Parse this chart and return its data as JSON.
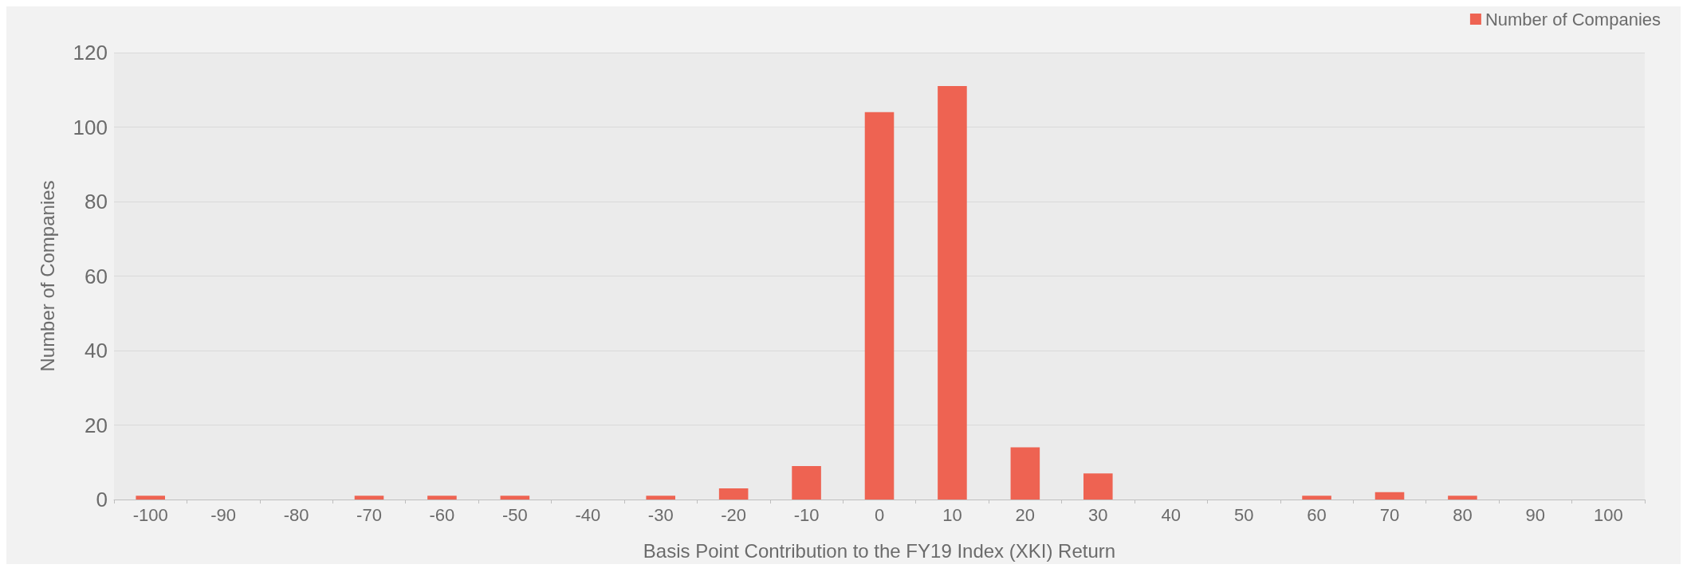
{
  "chart_data": {
    "type": "bar",
    "xlabel": "Basis Point Contribution to the FY19 Index (XKI) Return",
    "ylabel": "Number of Companies",
    "categories": [
      "-100",
      "-90",
      "-80",
      "-70",
      "-60",
      "-50",
      "-40",
      "-30",
      "-20",
      "-10",
      "0",
      "10",
      "20",
      "30",
      "40",
      "50",
      "60",
      "70",
      "80",
      "90",
      "100"
    ],
    "series": [
      {
        "name": "Number of Companies",
        "color": "#ee6352",
        "values": [
          1,
          0,
          0,
          1,
          1,
          1,
          0,
          1,
          3,
          9,
          104,
          111,
          14,
          7,
          0,
          0,
          1,
          2,
          1,
          0,
          0
        ]
      }
    ],
    "ylim": [
      0,
      120
    ],
    "yticks": [
      0,
      20,
      40,
      60,
      80,
      100,
      120
    ],
    "grid": "y",
    "legend": "top right"
  }
}
